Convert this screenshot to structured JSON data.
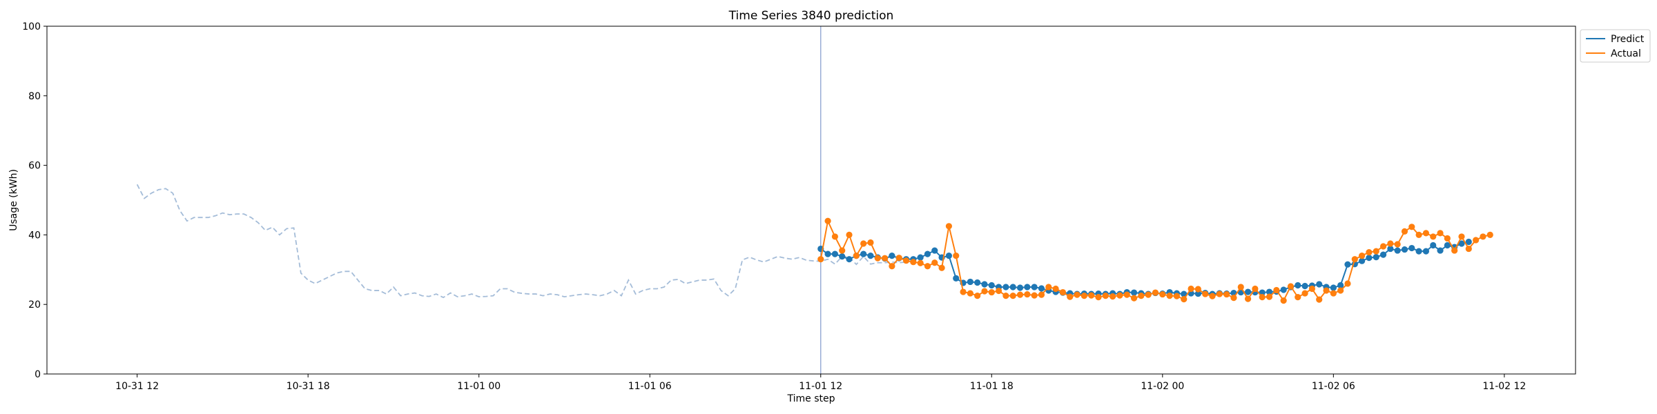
{
  "chart_data": {
    "type": "line",
    "title": "Time Series 3840 prediction",
    "xlabel": "Time step",
    "ylabel": "Usage (kWh)",
    "xlim": [
      "2020-10-31 08:50",
      "2020-11-02 14:30"
    ],
    "ylim": [
      0,
      100
    ],
    "x_ticks": [
      {
        "t": "2020-10-31 12:00",
        "label": "10-31 12"
      },
      {
        "t": "2020-10-31 18:00",
        "label": "10-31 18"
      },
      {
        "t": "2020-11-01 00:00",
        "label": "11-01 00"
      },
      {
        "t": "2020-11-01 06:00",
        "label": "11-01 06"
      },
      {
        "t": "2020-11-01 12:00",
        "label": "11-01 12"
      },
      {
        "t": "2020-11-01 18:00",
        "label": "11-01 18"
      },
      {
        "t": "2020-11-02 00:00",
        "label": "11-02 00"
      },
      {
        "t": "2020-11-02 06:00",
        "label": "11-02 06"
      },
      {
        "t": "2020-11-02 12:00",
        "label": "11-02 12"
      }
    ],
    "y_ticks": [
      0,
      20,
      40,
      60,
      80,
      100
    ],
    "grid": false,
    "legend": "top-right",
    "prediction_start": "2020-11-01 12:00",
    "history": {
      "start": "2020-10-31 12:00",
      "step_minutes": 15,
      "color": "#a4bcd8",
      "style": "dashed",
      "values": [
        54.5,
        50.5,
        52,
        53,
        53.3,
        52,
        47,
        44,
        45,
        45,
        45,
        45.5,
        46.3,
        45.8,
        46,
        46,
        45,
        43.5,
        41.3,
        42.2,
        40,
        41.8,
        42,
        29,
        27,
        26,
        27,
        28,
        29,
        29.5,
        29.5,
        27,
        24.5,
        24,
        24,
        23,
        25,
        22.5,
        23,
        23.3,
        22.5,
        22.3,
        23,
        22,
        23.3,
        22.2,
        22.5,
        23,
        22.2,
        22.3,
        22.5,
        24.5,
        24.5,
        23.5,
        23.2,
        23,
        23,
        22.5,
        23,
        22.8,
        22.2,
        22.5,
        22.8,
        23,
        22.8,
        22.5,
        23,
        24,
        22.5,
        27,
        23,
        24,
        24.5,
        24.5,
        25,
        27,
        27.2,
        26,
        26.5,
        27,
        27,
        27.3,
        24,
        22.5,
        24.5,
        32.8,
        33.6,
        32.8,
        32.2,
        33,
        33.8,
        33.3,
        33,
        33.5,
        32.7,
        32.5,
        32.4,
        33,
        31.6,
        33.8,
        33.6,
        31.5,
        33.8,
        31.6,
        32,
        32,
        32.2,
        32,
        32.2,
        32.5
      ]
    },
    "forecast_start": "2020-11-01 12:00",
    "forecast_step_minutes": 15,
    "series": [
      {
        "name": "Predict",
        "color": "#1f77b4",
        "values": [
          36,
          34.5,
          34.5,
          33.8,
          33,
          34,
          34.5,
          34,
          33.5,
          33.2,
          34,
          33.3,
          33,
          33,
          33.5,
          34.5,
          35.5,
          33.5,
          34,
          27.5,
          26.2,
          26.5,
          26.3,
          25.8,
          25.5,
          25,
          25,
          25,
          24.8,
          25,
          25,
          24.6,
          24,
          23.6,
          23.4,
          23.2,
          23,
          23.1,
          23,
          23.1,
          23,
          23.2,
          23,
          23.5,
          23.4,
          23.2,
          23,
          23.3,
          23.1,
          23.5,
          23.2,
          23,
          23.2,
          23.1,
          23.3,
          23,
          23.2,
          23.1,
          23.3,
          23.5,
          23.6,
          23.5,
          23.4,
          23.6,
          23.7,
          24.2,
          25,
          25.5,
          25.3,
          25.4,
          25.8,
          25,
          24.8,
          25.5,
          31.5,
          31.6,
          32.5,
          33.4,
          33.6,
          34.3,
          36,
          35.5,
          35.8,
          36.2,
          35.3,
          35.3,
          37,
          35.5,
          37,
          36.5,
          37.5,
          38
        ]
      },
      {
        "name": "Actual",
        "color": "#ff7f0e",
        "values": [
          33,
          44,
          39.5,
          35.5,
          40,
          34,
          37.5,
          37.8,
          33.3,
          33.3,
          31,
          33.4,
          32.6,
          32.2,
          31.9,
          31,
          32,
          30.5,
          42.5,
          34,
          23.6,
          23.2,
          22.5,
          23.8,
          23.5,
          23.9,
          22.5,
          22.5,
          22.8,
          22.9,
          22.6,
          22.8,
          25,
          24.5,
          23.5,
          22.2,
          22.8,
          22.5,
          22.6,
          22.1,
          22.5,
          22.3,
          22.6,
          22.8,
          21.8,
          22.5,
          22.8,
          23.4,
          22.9,
          22.5,
          22.4,
          21.5,
          24.5,
          24.4,
          23,
          22.4,
          23,
          22.9,
          21.9,
          25,
          21.6,
          24.5,
          22.1,
          22.2,
          24.1,
          21.1,
          25.2,
          22.1,
          23.2,
          24.5,
          21.4,
          24,
          23.2,
          24,
          26,
          33,
          34,
          35,
          35.3,
          36.7,
          37.5,
          37.3,
          41,
          42.3,
          40,
          40.5,
          39.5,
          40.5,
          39,
          35.5,
          39.5,
          36,
          38.5,
          39.5,
          40
        ]
      }
    ]
  }
}
